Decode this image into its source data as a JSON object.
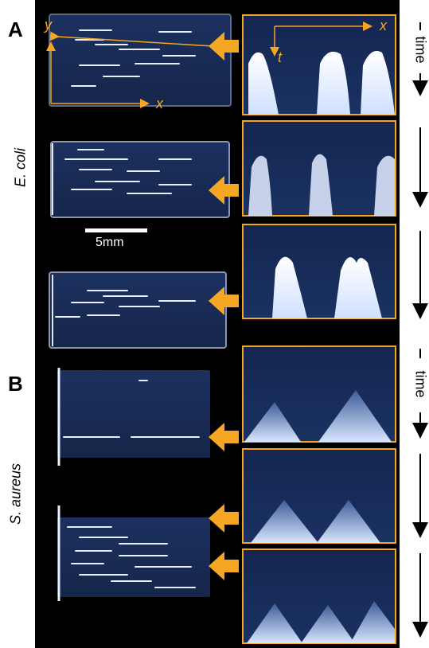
{
  "panels": {
    "a": {
      "letter": "A",
      "organism": "E. coli"
    },
    "b": {
      "letter": "B",
      "organism": "S. aureus"
    }
  },
  "axes": {
    "y": "y",
    "x": "x",
    "t": "t"
  },
  "time_label": "time",
  "scale_bar_label": "5mm",
  "colors": {
    "accent": "#f5a623",
    "background": "#000000",
    "channel": "#1b2f55",
    "streak": "#e8f0ff"
  }
}
